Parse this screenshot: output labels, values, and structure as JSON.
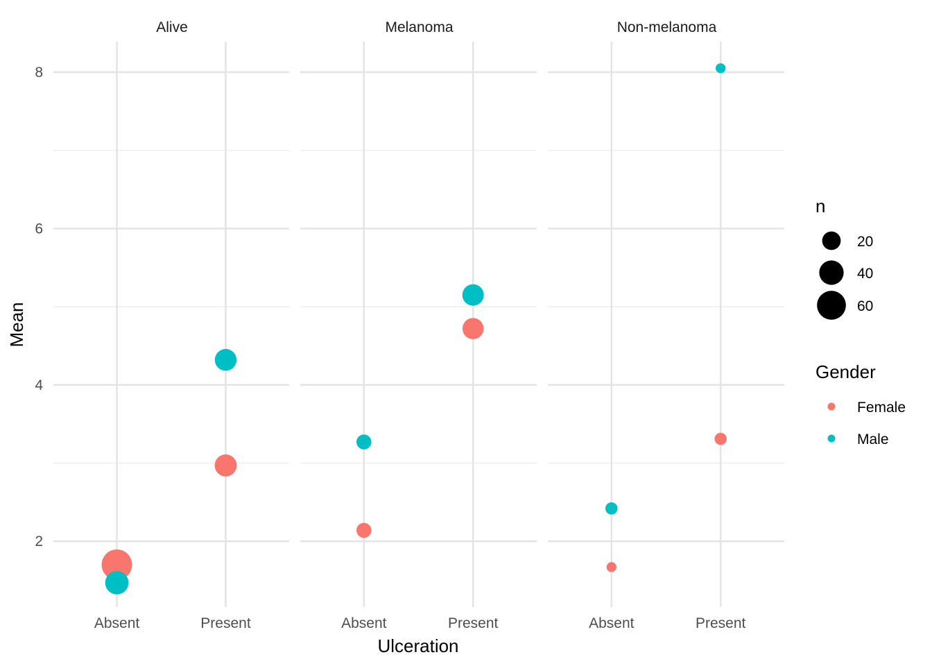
{
  "chart_data": {
    "type": "scatter",
    "xlabel": "Ulceration",
    "ylabel": "Mean",
    "categories": [
      "Absent",
      "Present"
    ],
    "facets": [
      "Alive",
      "Melanoma",
      "Non-melanoma"
    ],
    "ylim": [
      1.2,
      8.4
    ],
    "yticks": [
      2,
      4,
      6,
      8
    ],
    "grid": true,
    "size_legend": {
      "title": "n",
      "values": [
        20,
        40,
        60
      ]
    },
    "color_legend": {
      "title": "Gender",
      "entries": [
        {
          "name": "Female",
          "color": "#F8766D"
        },
        {
          "name": "Male",
          "color": "#00BFC4"
        }
      ]
    },
    "points": [
      {
        "facet": "Alive",
        "x": "Absent",
        "gender": "Female",
        "y": 1.7,
        "n": 68
      },
      {
        "facet": "Alive",
        "x": "Absent",
        "gender": "Male",
        "y": 1.47,
        "n": 36
      },
      {
        "facet": "Alive",
        "x": "Present",
        "gender": "Female",
        "y": 2.97,
        "n": 31
      },
      {
        "facet": "Alive",
        "x": "Present",
        "gender": "Male",
        "y": 4.32,
        "n": 30
      },
      {
        "facet": "Melanoma",
        "x": "Absent",
        "gender": "Female",
        "y": 2.14,
        "n": 11
      },
      {
        "facet": "Melanoma",
        "x": "Absent",
        "gender": "Male",
        "y": 3.27,
        "n": 11
      },
      {
        "facet": "Melanoma",
        "x": "Present",
        "gender": "Female",
        "y": 4.72,
        "n": 28
      },
      {
        "facet": "Melanoma",
        "x": "Present",
        "gender": "Male",
        "y": 5.15,
        "n": 29
      },
      {
        "facet": "Non-melanoma",
        "x": "Absent",
        "gender": "Female",
        "y": 1.67,
        "n": 3
      },
      {
        "facet": "Non-melanoma",
        "x": "Absent",
        "gender": "Male",
        "y": 2.42,
        "n": 6
      },
      {
        "facet": "Non-melanoma",
        "x": "Present",
        "gender": "Female",
        "y": 3.31,
        "n": 6
      },
      {
        "facet": "Non-melanoma",
        "x": "Present",
        "gender": "Male",
        "y": 8.05,
        "n": 3
      }
    ]
  }
}
